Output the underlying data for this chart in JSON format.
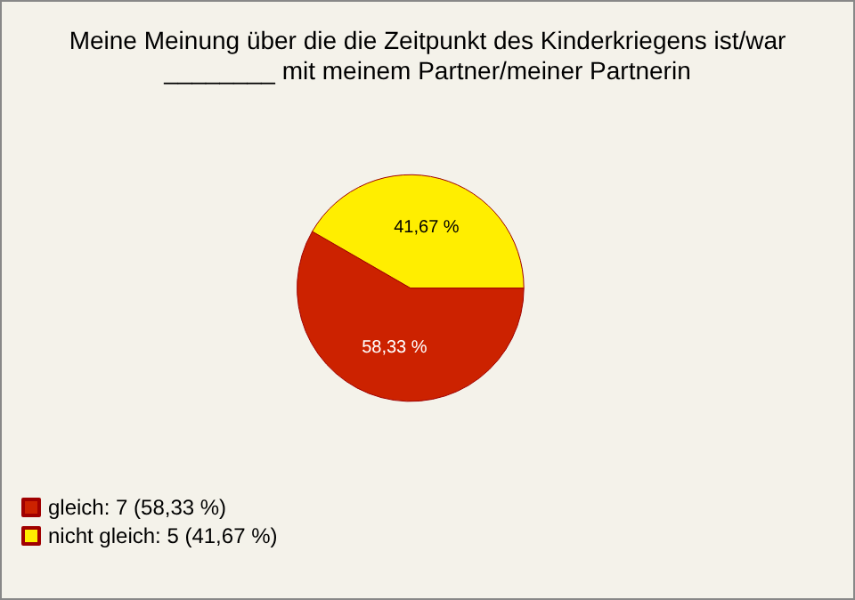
{
  "chart_data": {
    "type": "pie",
    "title": "Meine Meinung über die die Zeitpunkt des Kinderkriegens ist/war\n________ mit meinem Partner/meiner Partnerin",
    "categories": [
      "gleich: 7 (58,33 %)",
      "nicht gleich: 5 (41,67 %)"
    ],
    "values": [
      58.33,
      41.67
    ],
    "colors": [
      "#cc2200",
      "#ffee00"
    ],
    "value_labels": [
      "58,33 %",
      "41,67 %"
    ],
    "legend": "bottom left"
  }
}
